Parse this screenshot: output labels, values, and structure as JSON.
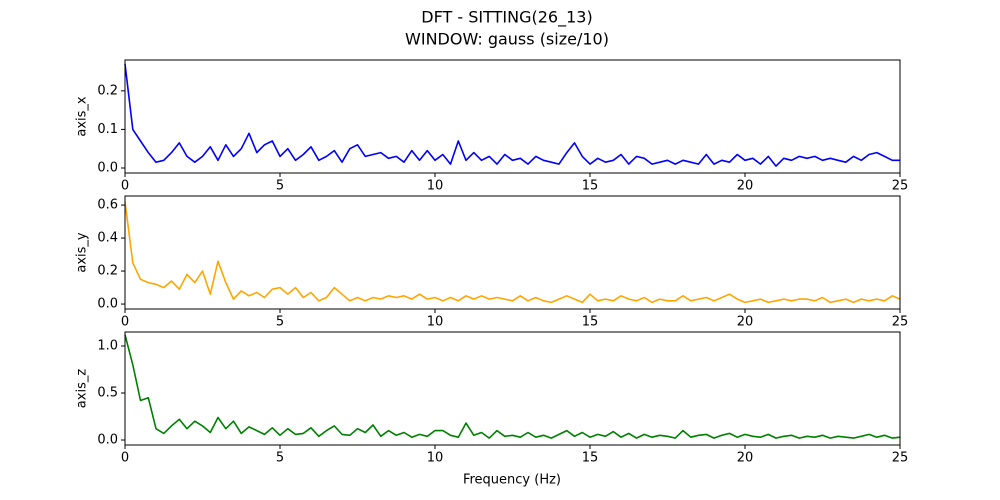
{
  "chart_data": {
    "type": "line",
    "title": "DFT - SITTING(26_13)",
    "subtitle": "WINDOW: gauss (size/10)",
    "xlabel": "Frequency (Hz)",
    "xlim": [
      0,
      25
    ],
    "xticks": [
      0,
      5,
      10,
      15,
      20,
      25
    ],
    "x": [
      0,
      0.25,
      0.5,
      0.75,
      1,
      1.25,
      1.5,
      1.75,
      2,
      2.25,
      2.5,
      2.75,
      3,
      3.25,
      3.5,
      3.75,
      4,
      4.25,
      4.5,
      4.75,
      5,
      5.25,
      5.5,
      5.75,
      6,
      6.25,
      6.5,
      6.75,
      7,
      7.25,
      7.5,
      7.75,
      8,
      8.25,
      8.5,
      8.75,
      9,
      9.25,
      9.5,
      9.75,
      10,
      10.25,
      10.5,
      10.75,
      11,
      11.25,
      11.5,
      11.75,
      12,
      12.25,
      12.5,
      12.75,
      13,
      13.25,
      13.5,
      13.75,
      14,
      14.25,
      14.5,
      14.75,
      15,
      15.25,
      15.5,
      15.75,
      16,
      16.25,
      16.5,
      16.75,
      17,
      17.25,
      17.5,
      17.75,
      18,
      18.25,
      18.5,
      18.75,
      19,
      19.25,
      19.5,
      19.75,
      20,
      20.25,
      20.5,
      20.75,
      21,
      21.25,
      21.5,
      21.75,
      22,
      22.25,
      22.5,
      22.75,
      23,
      23.25,
      23.5,
      23.75,
      24,
      24.25,
      24.5,
      24.75,
      25
    ],
    "series": [
      {
        "name": "axis_x",
        "color": "#0000ff",
        "ylim": [
          -0.013,
          0.28
        ],
        "yticks": [
          {
            "value": 0,
            "label": "0.0"
          },
          0.1,
          0.2
        ],
        "values": [
          0.27,
          0.1,
          0.07,
          0.04,
          0.015,
          0.02,
          0.04,
          0.065,
          0.03,
          0.015,
          0.03,
          0.055,
          0.02,
          0.06,
          0.03,
          0.05,
          0.09,
          0.04,
          0.06,
          0.07,
          0.03,
          0.05,
          0.02,
          0.035,
          0.055,
          0.02,
          0.03,
          0.045,
          0.015,
          0.05,
          0.06,
          0.03,
          0.035,
          0.04,
          0.025,
          0.03,
          0.015,
          0.045,
          0.02,
          0.045,
          0.02,
          0.035,
          0.01,
          0.07,
          0.02,
          0.04,
          0.02,
          0.03,
          0.01,
          0.035,
          0.02,
          0.025,
          0.01,
          0.03,
          0.02,
          0.015,
          0.01,
          0.04,
          0.065,
          0.03,
          0.01,
          0.025,
          0.015,
          0.02,
          0.035,
          0.01,
          0.03,
          0.025,
          0.01,
          0.015,
          0.02,
          0.01,
          0.02,
          0.015,
          0.01,
          0.035,
          0.01,
          0.02,
          0.015,
          0.035,
          0.02,
          0.025,
          0.01,
          0.03,
          0.005,
          0.025,
          0.02,
          0.03,
          0.025,
          0.03,
          0.02,
          0.025,
          0.02,
          0.015,
          0.03,
          0.02,
          0.035,
          0.04,
          0.03,
          0.02,
          0.02
        ]
      },
      {
        "name": "axis_y",
        "color": "#ffa500",
        "ylim": [
          -0.03,
          0.655
        ],
        "yticks": [
          {
            "value": 0,
            "label": "0.0"
          },
          0.2,
          0.4,
          0.6
        ],
        "values": [
          0.62,
          0.25,
          0.15,
          0.13,
          0.12,
          0.1,
          0.14,
          0.09,
          0.18,
          0.13,
          0.2,
          0.06,
          0.26,
          0.13,
          0.03,
          0.08,
          0.05,
          0.07,
          0.04,
          0.09,
          0.1,
          0.06,
          0.1,
          0.04,
          0.07,
          0.02,
          0.04,
          0.1,
          0.06,
          0.02,
          0.04,
          0.02,
          0.04,
          0.03,
          0.05,
          0.04,
          0.05,
          0.03,
          0.06,
          0.03,
          0.04,
          0.02,
          0.04,
          0.02,
          0.05,
          0.03,
          0.05,
          0.03,
          0.04,
          0.03,
          0.02,
          0.05,
          0.02,
          0.04,
          0.02,
          0.01,
          0.03,
          0.05,
          0.03,
          0.01,
          0.06,
          0.02,
          0.03,
          0.02,
          0.05,
          0.03,
          0.02,
          0.04,
          0.01,
          0.03,
          0.02,
          0.02,
          0.05,
          0.02,
          0.03,
          0.04,
          0.02,
          0.04,
          0.06,
          0.03,
          0.01,
          0.02,
          0.03,
          0.01,
          0.02,
          0.03,
          0.02,
          0.03,
          0.03,
          0.02,
          0.04,
          0.01,
          0.02,
          0.03,
          0.01,
          0.03,
          0.02,
          0.03,
          0.02,
          0.05,
          0.03
        ]
      },
      {
        "name": "axis_z",
        "color": "#008000",
        "ylim": [
          -0.053,
          1.149
        ],
        "yticks": [
          {
            "value": 0,
            "label": "0.0"
          },
          0.5,
          {
            "value": 1,
            "label": "1.0"
          }
        ],
        "values": [
          1.12,
          0.8,
          0.42,
          0.45,
          0.12,
          0.07,
          0.15,
          0.22,
          0.12,
          0.2,
          0.15,
          0.08,
          0.24,
          0.12,
          0.2,
          0.07,
          0.14,
          0.1,
          0.06,
          0.13,
          0.05,
          0.12,
          0.06,
          0.07,
          0.13,
          0.04,
          0.1,
          0.15,
          0.06,
          0.05,
          0.12,
          0.08,
          0.16,
          0.04,
          0.1,
          0.05,
          0.08,
          0.03,
          0.06,
          0.04,
          0.1,
          0.1,
          0.05,
          0.03,
          0.18,
          0.05,
          0.08,
          0.02,
          0.1,
          0.04,
          0.05,
          0.03,
          0.08,
          0.03,
          0.05,
          0.02,
          0.06,
          0.1,
          0.04,
          0.08,
          0.03,
          0.06,
          0.04,
          0.09,
          0.03,
          0.07,
          0.02,
          0.06,
          0.03,
          0.05,
          0.04,
          0.02,
          0.1,
          0.03,
          0.05,
          0.06,
          0.02,
          0.05,
          0.07,
          0.03,
          0.06,
          0.04,
          0.03,
          0.06,
          0.02,
          0.04,
          0.05,
          0.02,
          0.04,
          0.03,
          0.05,
          0.02,
          0.04,
          0.03,
          0.02,
          0.04,
          0.06,
          0.03,
          0.05,
          0.02,
          0.03
        ]
      }
    ]
  }
}
